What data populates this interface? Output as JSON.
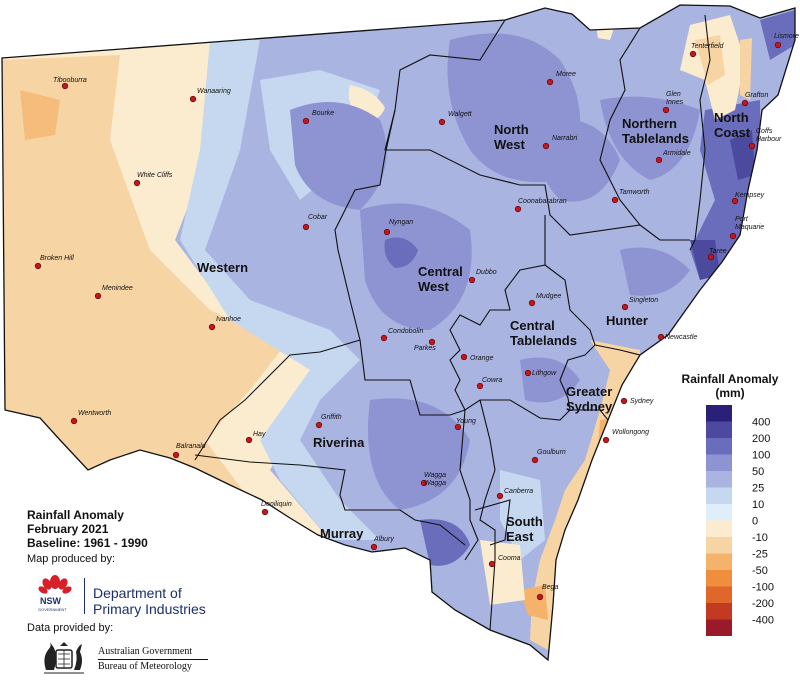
{
  "title": {
    "line1": "Rainfall Anomaly",
    "line2": "February 2021",
    "line3": "Baseline: 1961 - 1990"
  },
  "credits": {
    "produced_by": "Map produced by:",
    "department_line1": "Department of",
    "department_line2": "Primary Industries",
    "nsw_logo_word": "NSW",
    "nsw_logo_sub": "GOVERNMENT",
    "data_by": "Data provided by:",
    "agency_line1": "Australian Government",
    "agency_line2": "Bureau of Meteorology"
  },
  "legend": {
    "title_line1": "Rainfall Anomaly",
    "title_line2": "(mm)",
    "classes": [
      {
        "label": "400",
        "color": "#2b2078"
      },
      {
        "label": "200",
        "color": "#4b4a9e"
      },
      {
        "label": "100",
        "color": "#6a6dbb"
      },
      {
        "label": "50",
        "color": "#8e93d1"
      },
      {
        "label": "25",
        "color": "#aab4e1"
      },
      {
        "label": "10",
        "color": "#c6d8ef"
      },
      {
        "label": "0",
        "color": "#dfeef8"
      },
      {
        "label": "-10",
        "color": "#fbecd0"
      },
      {
        "label": "-25",
        "color": "#f7d4a3"
      },
      {
        "label": "-50",
        "color": "#f5b26a"
      },
      {
        "label": "-100",
        "color": "#ef8e3c"
      },
      {
        "label": "-200",
        "color": "#e0672a"
      },
      {
        "label": "-400",
        "color": "#c23a22"
      },
      {
        "label": "",
        "color": "#9a1a2a"
      }
    ]
  },
  "regions": [
    {
      "name": "Western",
      "lines": [
        "Western"
      ]
    },
    {
      "name": "Central West",
      "lines": [
        "Central",
        "West"
      ]
    },
    {
      "name": "North West",
      "lines": [
        "North",
        "West"
      ]
    },
    {
      "name": "Northern Tablelands",
      "lines": [
        "Northern",
        "Tablelands"
      ]
    },
    {
      "name": "North Coast",
      "lines": [
        "North",
        "Coast"
      ]
    },
    {
      "name": "Central Tablelands",
      "lines": [
        "Central",
        "Tablelands"
      ]
    },
    {
      "name": "Hunter",
      "lines": [
        "Hunter"
      ]
    },
    {
      "name": "Greater Sydney",
      "lines": [
        "Greater",
        "Sydney"
      ]
    },
    {
      "name": "Riverina",
      "lines": [
        "Riverina"
      ]
    },
    {
      "name": "Murray",
      "lines": [
        "Murray"
      ]
    },
    {
      "name": "South East",
      "lines": [
        "South",
        "East"
      ]
    }
  ],
  "towns": [
    "Tibooburra",
    "Wanaaring",
    "Bourke",
    "Walgett",
    "Moree",
    "Tenterfield",
    "Lismore",
    "Glen Innes",
    "Grafton",
    "Narrabri",
    "Armidale",
    "Coffs Harbour",
    "White Cliffs",
    "Coonabarabran",
    "Tamworth",
    "Cobar",
    "Nyngan",
    "Kempsey",
    "Port Maquarie",
    "Broken Hill",
    "Dubbo",
    "Taree",
    "Menindee",
    "Mudgee",
    "Singleton",
    "Ivanhoe",
    "Condobolin",
    "Parkes",
    "Newcastle",
    "Orange",
    "Lithgow",
    "Cowra",
    "Sydney",
    "Wentworth",
    "Griffith",
    "Young",
    "Balranald",
    "Hay",
    "Wollongong",
    "Goulburn",
    "Wagga Wagga",
    "Canberra",
    "Deniliquin",
    "Albury",
    "Cooma",
    "Bega"
  ]
}
